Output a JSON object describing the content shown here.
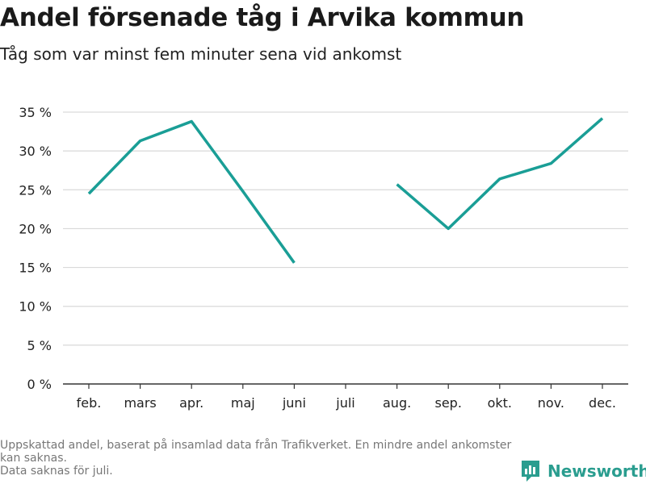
{
  "title": "Andel försenade tåg i Arvika kommun",
  "subtitle": "Tåg som var minst fem minuter sena vid ankomst",
  "footnote": {
    "line1": "Uppskattad andel, baserat på insamlad data från Trafikverket. En mindre andel ankomster kan saknas.",
    "line2": "Data saknas för juli."
  },
  "brand": {
    "name": "Newsworthy",
    "color": "#2a9d8f"
  },
  "colors": {
    "line": "#1a9e96",
    "grid": "#d9d9d9",
    "axis": "#333333",
    "tick_text": "#222222"
  },
  "chart_data": {
    "type": "line",
    "title": "Andel försenade tåg i Arvika kommun",
    "subtitle": "Tåg som var minst fem minuter sena vid ankomst",
    "categories": [
      "feb.",
      "mars",
      "apr.",
      "maj",
      "juni",
      "juli",
      "aug.",
      "sep.",
      "okt.",
      "nov.",
      "dec."
    ],
    "series": [
      {
        "values": [
          24.5,
          31.3,
          33.8,
          24.8,
          15.6,
          null,
          25.7,
          20.0,
          26.4,
          28.4,
          34.2
        ]
      }
    ],
    "yticks": [
      0,
      5,
      10,
      15,
      20,
      25,
      30,
      35
    ],
    "ytick_labels": [
      "0 %",
      "5 %",
      "10 %",
      "15 %",
      "20 %",
      "25 %",
      "30 %",
      "35 %"
    ],
    "ylim": [
      0,
      35
    ],
    "grid": true,
    "xlabel": "",
    "ylabel": ""
  }
}
